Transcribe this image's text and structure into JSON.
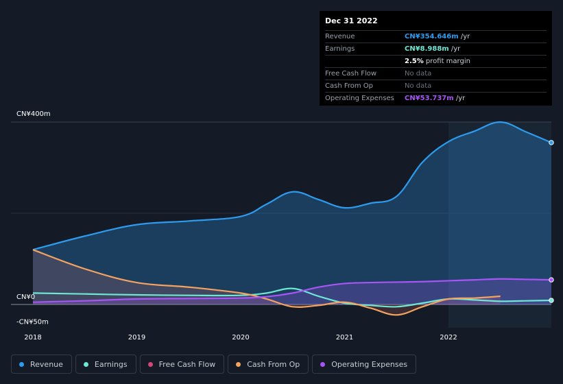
{
  "tooltip": {
    "date": "Dec 31 2022",
    "rows": [
      {
        "label": "Revenue",
        "value": "CN¥354.646m",
        "unit": " /yr",
        "color": "#2d9cf0"
      },
      {
        "label": "Earnings",
        "value": "CN¥8.988m",
        "unit": " /yr",
        "color": "#6ee7d5"
      },
      {
        "label": "",
        "value": "2.5%",
        "unit": " profit margin",
        "color": "#ffffff"
      },
      {
        "label": "Free Cash Flow",
        "value": "No data",
        "unit": "",
        "color": "#6c737e"
      },
      {
        "label": "Cash From Op",
        "value": "No data",
        "unit": "",
        "color": "#6c737e"
      },
      {
        "label": "Operating Expenses",
        "value": "CN¥53.737m",
        "unit": " /yr",
        "color": "#a855f7"
      }
    ]
  },
  "legend": [
    {
      "label": "Revenue",
      "color": "#2d9cf0"
    },
    {
      "label": "Earnings",
      "color": "#6ee7d5"
    },
    {
      "label": "Free Cash Flow",
      "color": "#d6457a"
    },
    {
      "label": "Cash From Op",
      "color": "#f4a460"
    },
    {
      "label": "Operating Expenses",
      "color": "#a855f7"
    }
  ],
  "chart_data": {
    "type": "area",
    "ylim": [
      -50,
      400
    ],
    "xlim": [
      2018,
      2022.99
    ],
    "y_tick_labels": [
      {
        "value": 400,
        "label": "CN¥400m"
      },
      {
        "value": 0,
        "label": "CN¥0"
      },
      {
        "value": -50,
        "label": "-CN¥50m"
      }
    ],
    "x_ticks": [
      {
        "value": 2018,
        "label": "2018"
      },
      {
        "value": 2019,
        "label": "2019"
      },
      {
        "value": 2020,
        "label": "2020"
      },
      {
        "value": 2021,
        "label": "2021"
      },
      {
        "value": 2022,
        "label": "2022"
      }
    ],
    "highlight_from": 2022,
    "series": [
      {
        "name": "Revenue",
        "color": "#2d9cf0",
        "fill": true,
        "marker_end": true,
        "x": [
          2018,
          2018.5,
          2019,
          2019.5,
          2020,
          2020.25,
          2020.5,
          2020.75,
          2021,
          2021.25,
          2021.5,
          2021.75,
          2022,
          2022.25,
          2022.5,
          2022.75,
          2022.99
        ],
        "y": [
          120,
          150,
          175,
          183,
          193,
          220,
          247,
          230,
          212,
          222,
          237,
          312,
          357,
          380,
          400,
          378,
          355
        ]
      },
      {
        "name": "Earnings",
        "color": "#6ee7d5",
        "fill": false,
        "marker_end": true,
        "x": [
          2018,
          2018.5,
          2019,
          2019.5,
          2020,
          2020.25,
          2020.5,
          2020.75,
          2021,
          2021.25,
          2021.5,
          2021.75,
          2022,
          2022.25,
          2022.5,
          2022.75,
          2022.99
        ],
        "y": [
          25,
          23,
          21,
          20,
          20,
          25,
          35,
          18,
          3,
          -2,
          -5,
          3,
          12,
          10,
          7,
          8,
          9
        ]
      },
      {
        "name": "Cash From Op",
        "color": "#f4a460",
        "fill": true,
        "x": [
          2018,
          2018.5,
          2019,
          2019.5,
          2020,
          2020.25,
          2020.5,
          2020.75,
          2021,
          2021.25,
          2021.5,
          2021.75,
          2022,
          2022.25,
          2022.5
        ],
        "y": [
          120,
          78,
          48,
          38,
          25,
          12,
          -5,
          -2,
          5,
          -8,
          -23,
          -5,
          12,
          14,
          18
        ]
      },
      {
        "name": "Operating Expenses",
        "color": "#a855f7",
        "fill": true,
        "marker_end": true,
        "x": [
          2018,
          2018.5,
          2019,
          2019.5,
          2020,
          2020.25,
          2020.5,
          2020.75,
          2021,
          2021.25,
          2021.5,
          2021.75,
          2022,
          2022.25,
          2022.5,
          2022.75,
          2022.99
        ],
        "y": [
          5,
          8,
          12,
          13,
          14,
          17,
          25,
          38,
          46,
          48,
          49,
          50,
          52,
          54,
          56,
          55,
          54
        ]
      }
    ]
  }
}
